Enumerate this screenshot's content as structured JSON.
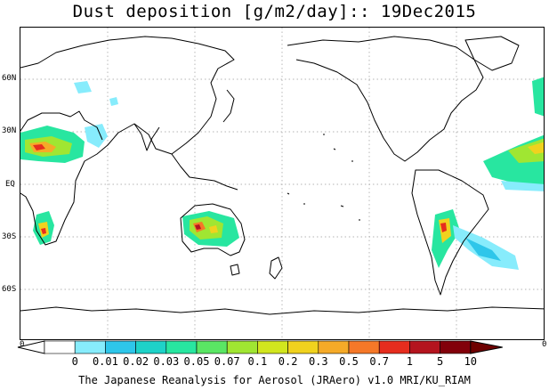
{
  "title": "Dust deposition [g/m2/day]:: 19Dec2015",
  "lat_labels": [
    "60N",
    "30N",
    "EQ",
    "30S",
    "60S"
  ],
  "colorbar": {
    "edge_left": "0",
    "edge_right": "0",
    "levels": [
      "0",
      "0.01",
      "0.02",
      "0.03",
      "0.05",
      "0.07",
      "0.1",
      "0.2",
      "0.3",
      "0.5",
      "0.7",
      "1",
      "5",
      "10"
    ],
    "colors": [
      "#ffffff",
      "#ffffff",
      "#87ecfc",
      "#2ec6ea",
      "#1ed2c8",
      "#28e6a0",
      "#5ae664",
      "#a0e632",
      "#d2e61e",
      "#f0d21e",
      "#f5aa28",
      "#f57828",
      "#e62d1e",
      "#b4141e",
      "#82000a",
      "#6e0000"
    ]
  },
  "footer": "The Japanese Reanalysis for Aerosol (JRAero) v1.0 MRI/KU_RIAM"
}
